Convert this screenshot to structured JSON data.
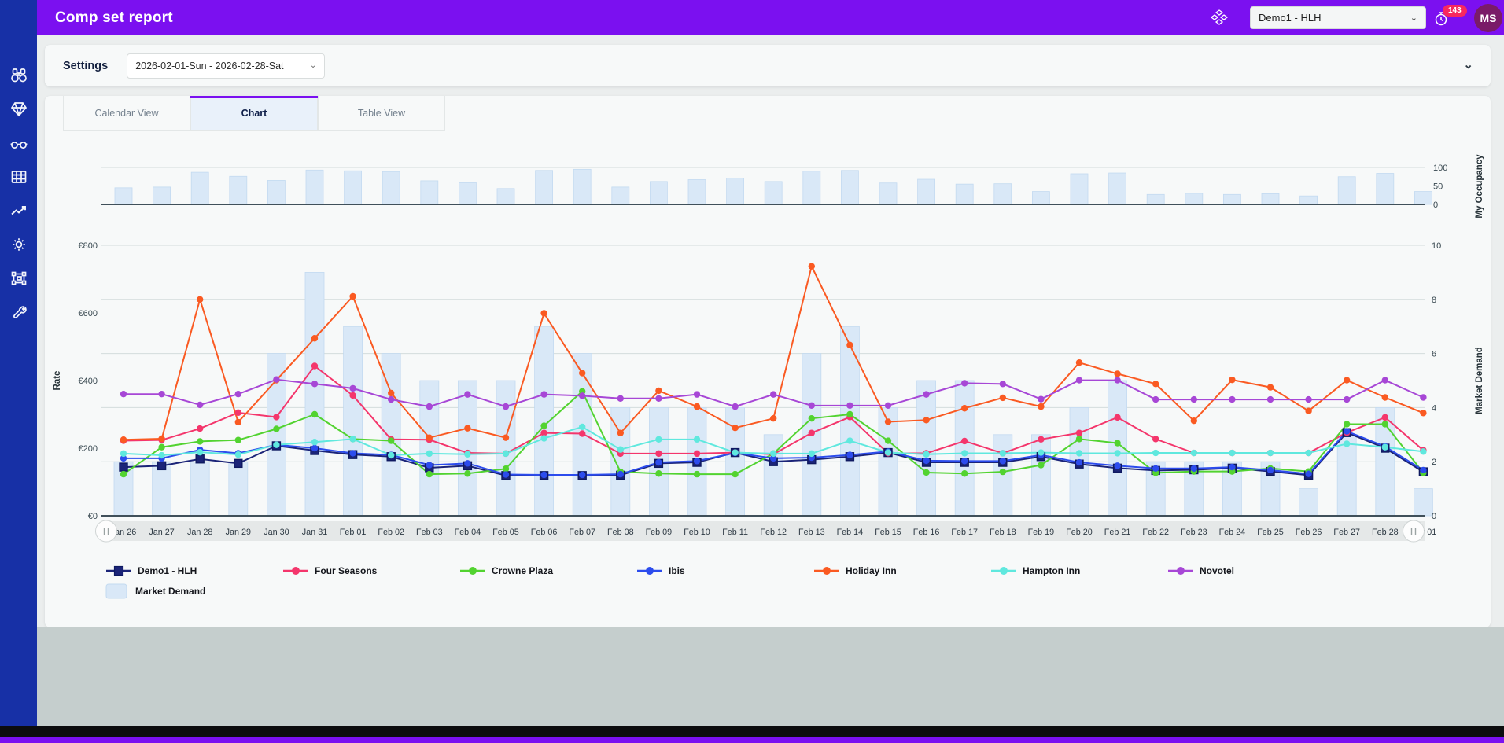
{
  "app": {
    "title": "Comp set report",
    "hotel_selector_value": "Demo1 - HLH",
    "notification_count": "143",
    "avatar_initials": "MS"
  },
  "settings": {
    "label": "Settings",
    "date_range_value": "2026-02-01-Sun - 2026-02-28-Sat"
  },
  "tabs": [
    {
      "label": "Calendar View",
      "active": false
    },
    {
      "label": "Chart",
      "active": true
    },
    {
      "label": "Table View",
      "active": false
    }
  ],
  "sidebar_icons": [
    "binoculars-icon",
    "diamond-icon",
    "glasses-icon",
    "table-icon",
    "trend-icon",
    "gear-icon",
    "artboard-icon",
    "wrench-icon"
  ],
  "colors": {
    "topbar": "#7b10f0",
    "sidebar": "#1730a6",
    "active_tab_accent": "#7b10f0",
    "demand_bar_fill": "#d9e8f7",
    "demand_bar_stroke": "#c3daf0",
    "gridline": "#d3dcdc",
    "axis_line": "#40505a",
    "badge": "#f8285f"
  },
  "chart_data": {
    "type": "mixed",
    "x": [
      "Jan 26",
      "Jan 27",
      "Jan 28",
      "Jan 29",
      "Jan 30",
      "Jan 31",
      "Feb 01",
      "Feb 02",
      "Feb 03",
      "Feb 04",
      "Feb 05",
      "Feb 06",
      "Feb 07",
      "Feb 08",
      "Feb 09",
      "Feb 10",
      "Feb 11",
      "Feb 12",
      "Feb 13",
      "Feb 14",
      "Feb 15",
      "Feb 16",
      "Feb 17",
      "Feb 18",
      "Feb 19",
      "Feb 20",
      "Feb 21",
      "Feb 22",
      "Feb 23",
      "Feb 24",
      "Feb 25",
      "Feb 26",
      "Feb 27",
      "Feb 28",
      "Mar 01"
    ],
    "axes": {
      "rate": {
        "label": "Rate",
        "tick_labels": [
          "€0",
          "€200",
          "€400",
          "€600",
          "€800"
        ],
        "tick_values": [
          0,
          200,
          400,
          600,
          800
        ],
        "min": 0,
        "max": 800,
        "position": "left"
      },
      "occupancy": {
        "label": "My Occupancy",
        "tick_labels": [
          "0",
          "50",
          "100"
        ],
        "tick_values": [
          0,
          50,
          100
        ],
        "min": 0,
        "max": 100,
        "position": "right-top"
      },
      "market_demand": {
        "label": "Market Demand",
        "tick_labels": [
          "0",
          "2",
          "4",
          "6",
          "8",
          "10"
        ],
        "tick_values": [
          0,
          2,
          4,
          6,
          8,
          10
        ],
        "min": 0,
        "max": 10,
        "position": "right"
      }
    },
    "series": [
      {
        "name": "Demo1 - HLH",
        "type": "line",
        "marker": "square",
        "color": "#1b2478",
        "values": [
          144,
          148,
          168,
          155,
          207,
          193,
          181,
          175,
          142,
          148,
          119,
          119,
          119,
          120,
          155,
          158,
          187,
          160,
          166,
          175,
          187,
          158,
          158,
          158,
          175,
          153,
          141,
          134,
          136,
          141,
          131,
          120,
          246,
          200,
          130
        ]
      },
      {
        "name": "Four Seasons",
        "type": "line",
        "marker": "circle",
        "color": "#f4366c",
        "values": [
          222,
          224,
          258,
          305,
          292,
          443,
          356,
          226,
          225,
          186,
          184,
          245,
          243,
          184,
          184,
          184,
          187,
          182,
          245,
          292,
          185,
          185,
          221,
          185,
          226,
          245,
          291,
          227,
          186,
          186,
          186,
          186,
          246,
          291,
          194
        ]
      },
      {
        "name": "Crowne Plaza",
        "type": "line",
        "marker": "circle",
        "color": "#52d330",
        "values": [
          123,
          203,
          220,
          224,
          257,
          300,
          227,
          222,
          123,
          125,
          139,
          266,
          368,
          130,
          125,
          123,
          123,
          184,
          288,
          300,
          222,
          128,
          125,
          130,
          150,
          227,
          215,
          127,
          131,
          131,
          140,
          131,
          271,
          271,
          127
        ]
      },
      {
        "name": "Ibis",
        "type": "line",
        "marker": "circle",
        "color": "#2c4ced",
        "values": [
          170,
          170,
          195,
          185,
          210,
          200,
          185,
          180,
          150,
          155,
          122,
          121,
          121,
          123,
          158,
          162,
          186,
          170,
          172,
          180,
          190,
          163,
          162,
          162,
          180,
          158,
          148,
          140,
          140,
          144,
          135,
          124,
          250,
          205,
          135
        ]
      },
      {
        "name": "Holiday Inn",
        "type": "line",
        "marker": "circle",
        "color": "#fa5a22",
        "values": [
          225,
          228,
          640,
          277,
          401,
          525,
          649,
          363,
          231,
          259,
          231,
          599,
          422,
          245,
          370,
          323,
          260,
          288,
          738,
          505,
          278,
          283,
          318,
          349,
          323,
          453,
          420,
          390,
          281,
          402,
          380,
          310,
          401,
          350,
          304
        ]
      },
      {
        "name": "Hampton Inn",
        "type": "line",
        "marker": "circle",
        "color": "#5fe8de",
        "values": [
          184,
          179,
          188,
          181,
          210,
          218,
          227,
          179,
          184,
          182,
          184,
          229,
          263,
          196,
          226,
          226,
          187,
          184,
          184,
          222,
          187,
          182,
          185,
          185,
          187,
          185,
          185,
          186,
          186,
          186,
          186,
          186,
          213,
          203,
          190
        ]
      },
      {
        "name": "Novotel",
        "type": "line",
        "marker": "circle",
        "color": "#a747d6",
        "values": [
          360,
          360,
          328,
          360,
          403,
          390,
          377,
          344,
          323,
          359,
          323,
          359,
          355,
          347,
          347,
          359,
          323,
          359,
          326,
          326,
          326,
          359,
          392,
          390,
          345,
          401,
          401,
          344,
          344,
          344,
          344,
          344,
          344,
          401,
          350
        ]
      }
    ],
    "market_demand_bars": {
      "name": "Market Demand",
      "axis": "market_demand",
      "values": [
        2,
        2,
        2,
        2,
        6,
        9,
        7,
        6,
        5,
        5,
        5,
        7,
        6,
        4,
        4,
        4,
        4,
        3,
        6,
        7,
        4,
        5,
        5,
        3,
        3,
        4,
        5,
        2,
        2,
        2,
        2,
        1,
        3,
        4,
        1
      ]
    },
    "occupancy_bars": {
      "name": "My Occupancy",
      "axis": "occupancy",
      "values": [
        45,
        47,
        87,
        76,
        65,
        93,
        91,
        89,
        64,
        59,
        43,
        92,
        95,
        47,
        62,
        67,
        71,
        62,
        90,
        92,
        58,
        68,
        55,
        56,
        35,
        83,
        85,
        27,
        30,
        27,
        29,
        23,
        75,
        84,
        35
      ]
    },
    "legend_position": "bottom"
  }
}
